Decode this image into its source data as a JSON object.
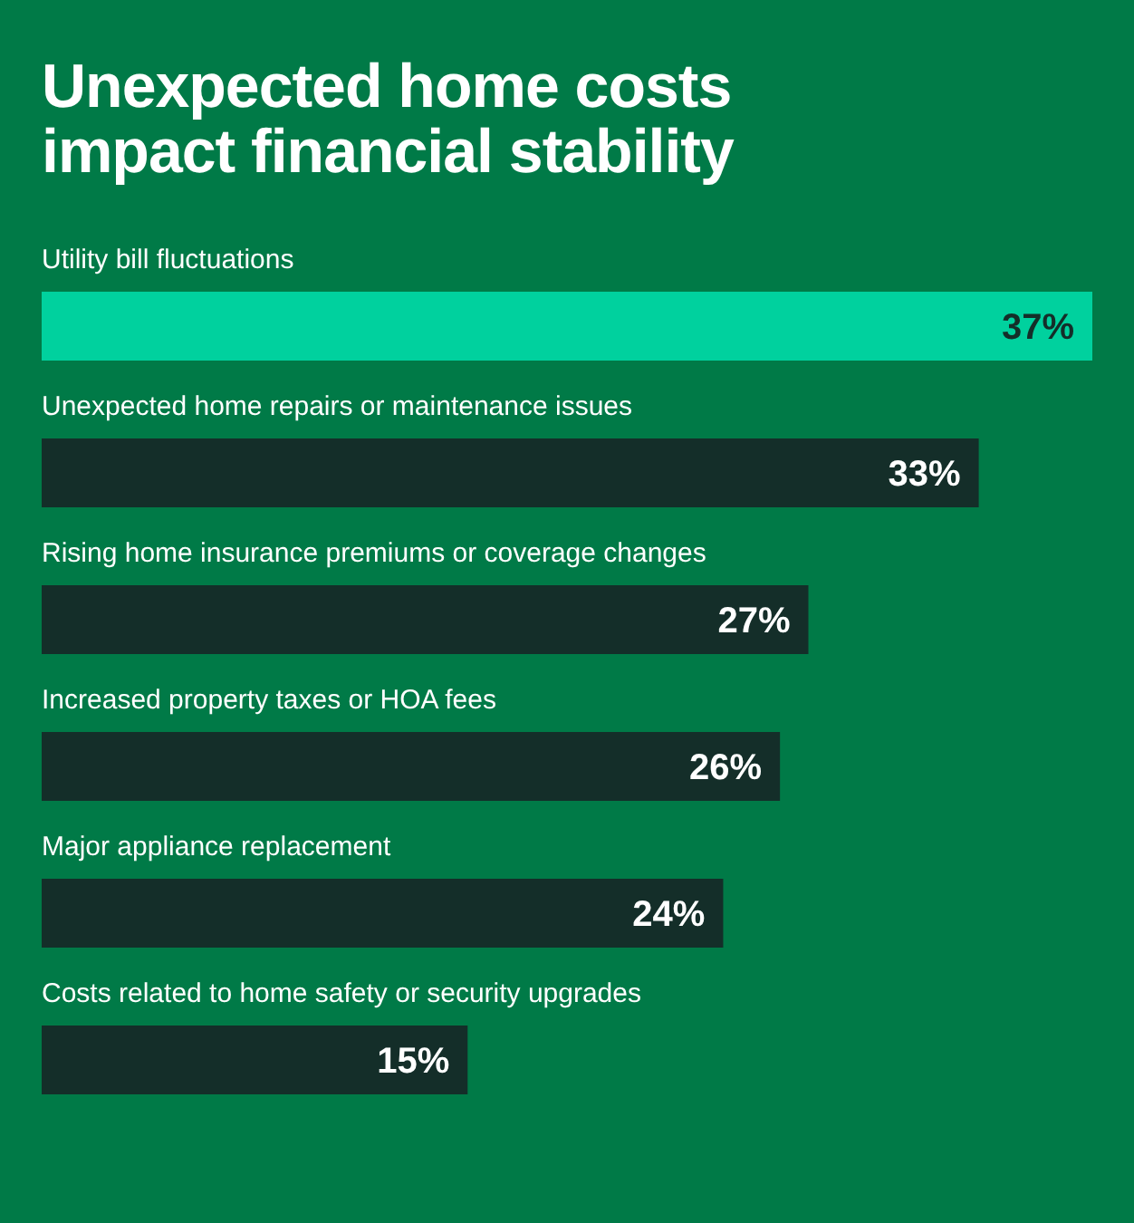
{
  "chart_data": {
    "type": "bar",
    "orientation": "horizontal",
    "title": "Unexpected home costs\nimpact financial stability",
    "categories": [
      "Utility bill fluctuations",
      "Unexpected home repairs or maintenance issues",
      "Rising home insurance premiums or coverage changes",
      "Increased property taxes or HOA fees",
      "Major appliance replacement",
      "Costs related to home safety or security upgrades"
    ],
    "values": [
      37,
      33,
      27,
      26,
      24,
      15
    ],
    "value_labels": [
      "37%",
      "33%",
      "27%",
      "26%",
      "24%",
      "15%"
    ],
    "colors": [
      "#00d19e",
      "#142e29",
      "#142e29",
      "#142e29",
      "#142e29",
      "#142e29"
    ]
  }
}
